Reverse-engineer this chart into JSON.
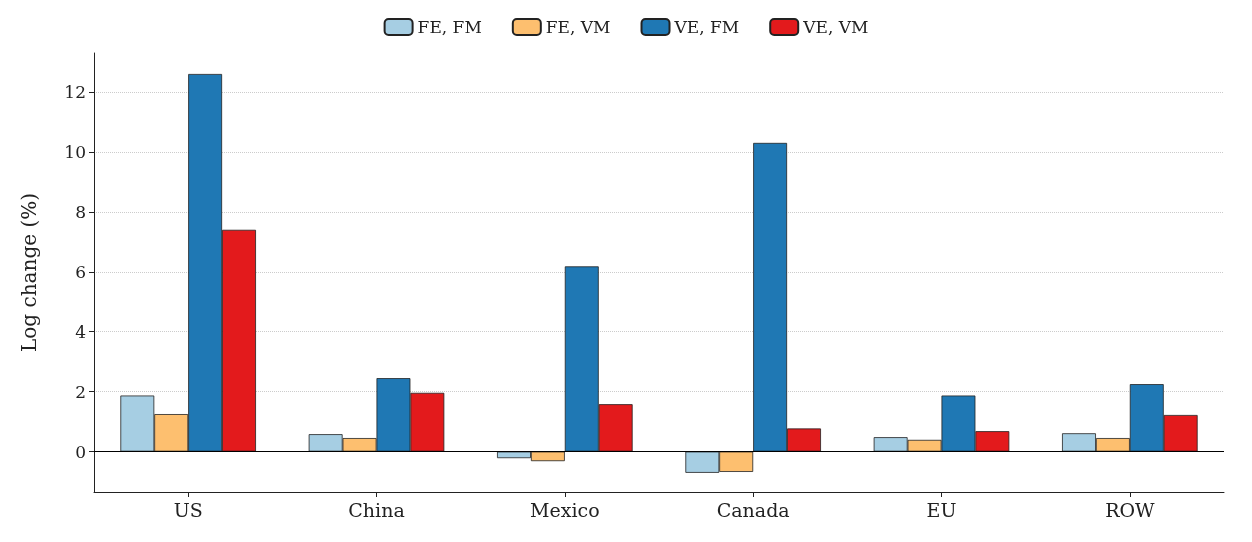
{
  "chart_data": {
    "type": "bar",
    "ylabel": "Log change (%)",
    "categories": [
      "US",
      "China",
      "Mexico",
      "Canada",
      "EU",
      "ROW"
    ],
    "series": [
      {
        "name": "FE, FM",
        "color": "#a6cee3",
        "values": [
          1.87,
          0.58,
          -0.22,
          -0.71,
          0.48,
          0.61
        ]
      },
      {
        "name": "FE, VM",
        "color": "#fdbf6f",
        "values": [
          1.25,
          0.45,
          -0.32,
          -0.68,
          0.39,
          0.45
        ]
      },
      {
        "name": "VE, FM",
        "color": "#1f78b4",
        "values": [
          12.6,
          2.45,
          6.18,
          10.3,
          1.87,
          2.25
        ]
      },
      {
        "name": "VE, VM",
        "color": "#e31a1c",
        "values": [
          7.4,
          1.96,
          1.58,
          0.77,
          0.68,
          1.22
        ]
      }
    ],
    "ylim": [
      -1.35,
      13.3
    ],
    "yticks": [
      0,
      2,
      4,
      6,
      8,
      10,
      12
    ],
    "grid": "y",
    "legend": "top",
    "ref_lines": [
      {
        "axis": "y",
        "value": 0,
        "color": "#000000"
      }
    ]
  }
}
